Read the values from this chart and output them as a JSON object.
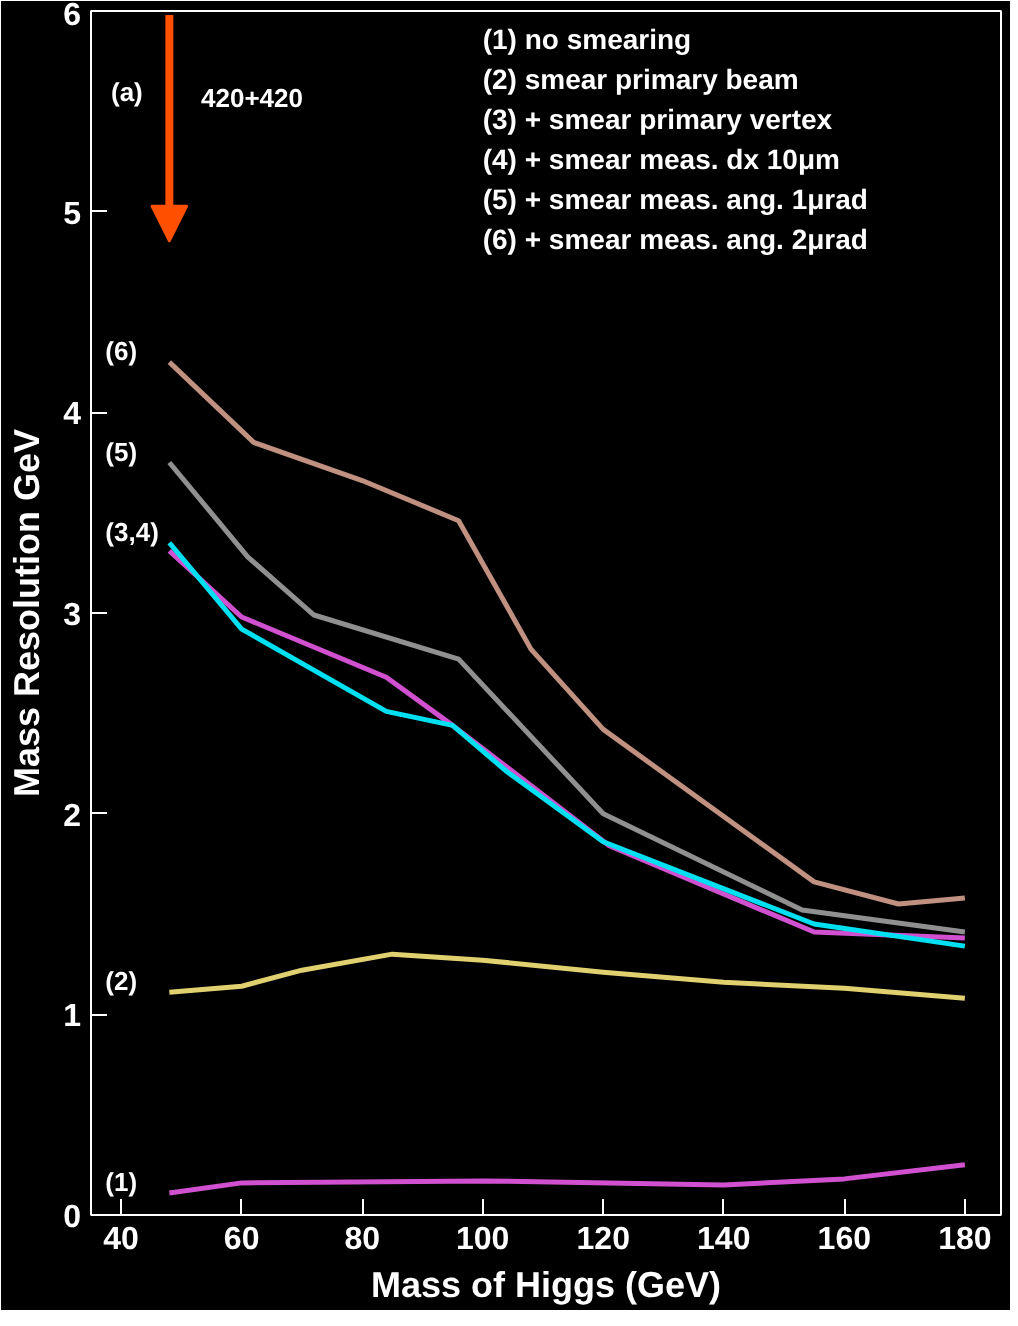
{
  "chart_data": {
    "type": "line",
    "xlabel": "Mass of Higgs (GeV)",
    "ylabel": "Mass Resolution GeV",
    "xlim": [
      35,
      186
    ],
    "ylim": [
      0,
      6
    ],
    "xticks": [
      40,
      60,
      80,
      100,
      120,
      140,
      160,
      180
    ],
    "yticks": [
      0,
      1,
      2,
      3,
      4,
      5,
      6
    ],
    "grid": false,
    "legend": false,
    "line_style": "solid",
    "marker": "none",
    "series": [
      {
        "name": "(1)",
        "color": "#d050d0",
        "x": [
          48,
          60,
          100,
          140,
          160,
          180
        ],
        "values": [
          0.11,
          0.16,
          0.17,
          0.15,
          0.18,
          0.25
        ]
      },
      {
        "name": "(2)",
        "color": "#e0d070",
        "x": [
          48,
          60,
          70,
          85,
          100,
          120,
          140,
          160,
          180
        ],
        "values": [
          1.11,
          1.14,
          1.22,
          1.3,
          1.27,
          1.21,
          1.16,
          1.13,
          1.08
        ]
      },
      {
        "color": "#d050d0",
        "x": [
          48,
          60,
          84,
          95,
          121,
          155,
          180
        ],
        "values": [
          3.31,
          2.98,
          2.68,
          2.44,
          1.84,
          1.41,
          1.38
        ]
      },
      {
        "name": "(3,4)",
        "color": "#00e0f0",
        "x": [
          48,
          60,
          84,
          95,
          104,
          120,
          155,
          180
        ],
        "values": [
          3.35,
          2.92,
          2.51,
          2.44,
          2.21,
          1.86,
          1.45,
          1.34
        ]
      },
      {
        "name": "(5)",
        "color": "#909090",
        "x": [
          48,
          61,
          72,
          96,
          120,
          153,
          180
        ],
        "values": [
          3.75,
          3.28,
          2.99,
          2.77,
          2.0,
          1.52,
          1.41
        ]
      },
      {
        "name": "(6)",
        "color": "#c09080",
        "x": [
          48,
          62,
          80,
          96,
          108,
          120,
          155,
          169,
          180
        ],
        "values": [
          4.25,
          3.85,
          3.66,
          3.46,
          2.82,
          2.42,
          1.66,
          1.55,
          1.58
        ]
      }
    ],
    "annotations": [
      "(a)",
      "420+420",
      "(1)  no smearing",
      "(2)  smear primary beam",
      "(3) + smear primary vertex",
      "(4) + smear meas. dx 10μm",
      "(5) + smear meas. ang. 1μrad",
      "(6) + smear meas. ang. 2μrad"
    ]
  }
}
